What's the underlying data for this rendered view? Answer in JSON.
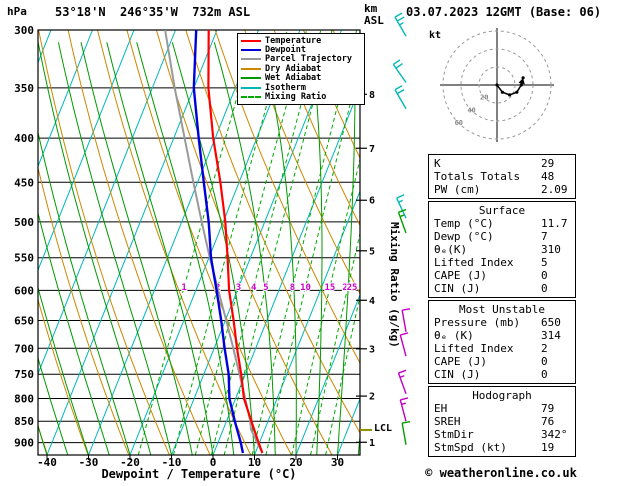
{
  "meta": {
    "station": "53°18'N  246°35'W  732m ASL",
    "datetime": "03.07.2023 12GMT (Base: 06)",
    "pressure_unit": "hPa",
    "km_unit": "km",
    "asl_unit": "ASL",
    "kt_label": "kt",
    "x_axis_label": "Dewpoint / Temperature (°C)",
    "mixing_axis_label": "Mixing Ratio (g/kg)",
    "lcl_label": "LCL",
    "copyright": "© weatheronline.co.uk"
  },
  "legend": [
    {
      "label": "Temperature",
      "color": "#ff0000",
      "dash": false
    },
    {
      "label": "Dewpoint",
      "color": "#0000dd",
      "dash": false
    },
    {
      "label": "Parcel Trajectory",
      "color": "#999999",
      "dash": false
    },
    {
      "label": "Dry Adiabat",
      "color": "#cc8800",
      "dash": false
    },
    {
      "label": "Wet Adiabat",
      "color": "#009900",
      "dash": false
    },
    {
      "label": "Isotherm",
      "color": "#00b8b8",
      "dash": false
    },
    {
      "label": "Mixing Ratio",
      "color": "#00aa00",
      "dash": true
    }
  ],
  "table": {
    "sections": [
      {
        "header": null,
        "rows": [
          [
            "K",
            "29"
          ],
          [
            "Totals Totals",
            "48"
          ],
          [
            "PW (cm)",
            "2.09"
          ]
        ]
      },
      {
        "header": "Surface",
        "rows": [
          [
            "Temp (°C)",
            "11.7"
          ],
          [
            "Dewp (°C)",
            "7"
          ],
          [
            "θₑ(K)",
            "310"
          ],
          [
            "Lifted Index",
            "5"
          ],
          [
            "CAPE (J)",
            "0"
          ],
          [
            "CIN (J)",
            "0"
          ]
        ]
      },
      {
        "header": "Most Unstable",
        "rows": [
          [
            "Pressure (mb)",
            "650"
          ],
          [
            "θₑ (K)",
            "314"
          ],
          [
            "Lifted Index",
            "2"
          ],
          [
            "CAPE (J)",
            "0"
          ],
          [
            "CIN (J)",
            "0"
          ]
        ]
      },
      {
        "header": "Hodograph",
        "rows": [
          [
            "EH",
            "79"
          ],
          [
            "SREH",
            "76"
          ],
          [
            "StmDir",
            "342°"
          ],
          [
            "StmSpd (kt)",
            "19"
          ]
        ]
      }
    ]
  },
  "chart_data": {
    "type": "skewt_log_p_sounding",
    "axes": {
      "pressure_ticks": [
        300,
        350,
        400,
        450,
        500,
        550,
        600,
        650,
        700,
        750,
        800,
        850,
        900
      ],
      "pressure_range": [
        300,
        930
      ],
      "temp_ticks": [
        -40,
        -30,
        -20,
        -10,
        0,
        10,
        20,
        30
      ],
      "km_ticks": [
        {
          "km": 1,
          "p": 899
        },
        {
          "km": 2,
          "p": 795
        },
        {
          "km": 3,
          "p": 701
        },
        {
          "km": 4,
          "p": 616
        },
        {
          "km": 5,
          "p": 540
        },
        {
          "km": 6,
          "p": 472
        },
        {
          "km": 7,
          "p": 411
        },
        {
          "km": 8,
          "p": 356
        }
      ]
    },
    "colors": {
      "temperature": "#ff0000",
      "dewpoint": "#0000dd",
      "parcel": "#999999",
      "dry_adiabat": "#cc8800",
      "wet_adiabat": "#009900",
      "isotherm": "#00b8b8",
      "mixing_ratio": "#00aa00",
      "mixing_label": "#cc00cc",
      "grid": "#000000",
      "lcl_tick": "#909000"
    },
    "profiles": {
      "temperature": [
        [
          925,
          11.7
        ],
        [
          900,
          9.8
        ],
        [
          850,
          6.0
        ],
        [
          800,
          2.0
        ],
        [
          750,
          -1.0
        ],
        [
          700,
          -4.5
        ],
        [
          650,
          -8.0
        ],
        [
          600,
          -12.0
        ],
        [
          550,
          -15.5
        ],
        [
          500,
          -19.5
        ],
        [
          450,
          -24.5
        ],
        [
          400,
          -30.5
        ],
        [
          350,
          -36.5
        ],
        [
          300,
          -42.0
        ]
      ],
      "dewpoint": [
        [
          925,
          7.0
        ],
        [
          900,
          5.5
        ],
        [
          850,
          2.0
        ],
        [
          800,
          -1.5
        ],
        [
          750,
          -4.0
        ],
        [
          700,
          -7.5
        ],
        [
          650,
          -11.0
        ],
        [
          600,
          -15.0
        ],
        [
          550,
          -19.5
        ],
        [
          500,
          -23.5
        ],
        [
          450,
          -28.5
        ],
        [
          400,
          -34.0
        ],
        [
          350,
          -40.0
        ],
        [
          300,
          -45.0
        ]
      ],
      "parcel": [
        [
          925,
          11.7
        ],
        [
          900,
          9.5
        ],
        [
          870,
          6.8
        ],
        [
          850,
          5.7
        ],
        [
          800,
          2.3
        ],
        [
          750,
          -1.4
        ],
        [
          700,
          -5.4
        ],
        [
          650,
          -9.8
        ],
        [
          600,
          -14.6
        ],
        [
          550,
          -19.8
        ],
        [
          500,
          -25.2
        ],
        [
          450,
          -31.0
        ],
        [
          400,
          -37.4
        ],
        [
          350,
          -44.6
        ],
        [
          300,
          -52.5
        ]
      ]
    },
    "mixing_ratio_gkg": [
      1,
      2,
      3,
      4,
      5,
      8,
      10,
      15,
      20,
      25
    ],
    "lcl_hpa": 870,
    "wind_barbs": [
      {
        "p": 305,
        "dir": 330,
        "spd": 25,
        "color": "#00b8b8"
      },
      {
        "p": 345,
        "dir": 325,
        "spd": 20,
        "color": "#00b8b8"
      },
      {
        "p": 370,
        "dir": 330,
        "spd": 20,
        "color": "#00b8b8"
      },
      {
        "p": 495,
        "dir": 335,
        "spd": 15,
        "color": "#00b8b8"
      },
      {
        "p": 515,
        "dir": 340,
        "spd": 15,
        "color": "#00a000"
      },
      {
        "p": 670,
        "dir": 350,
        "spd": 10,
        "color": "#c000c0"
      },
      {
        "p": 715,
        "dir": 345,
        "spd": 10,
        "color": "#c000c0"
      },
      {
        "p": 790,
        "dir": 340,
        "spd": 15,
        "color": "#c000c0"
      },
      {
        "p": 850,
        "dir": 345,
        "spd": 15,
        "color": "#c000c0"
      },
      {
        "p": 905,
        "dir": 350,
        "spd": 10,
        "color": "#00a000"
      }
    ],
    "hodograph": {
      "unit": "kt",
      "rings_kt": [
        20,
        40,
        60
      ],
      "trace_uv_kt": [
        [
          0,
          0
        ],
        [
          6,
          -8
        ],
        [
          14,
          -11
        ],
        [
          22,
          -8
        ],
        [
          27,
          0
        ],
        [
          29,
          8
        ]
      ],
      "storm_dir_deg": 342,
      "storm_spd_kt": 19
    }
  }
}
